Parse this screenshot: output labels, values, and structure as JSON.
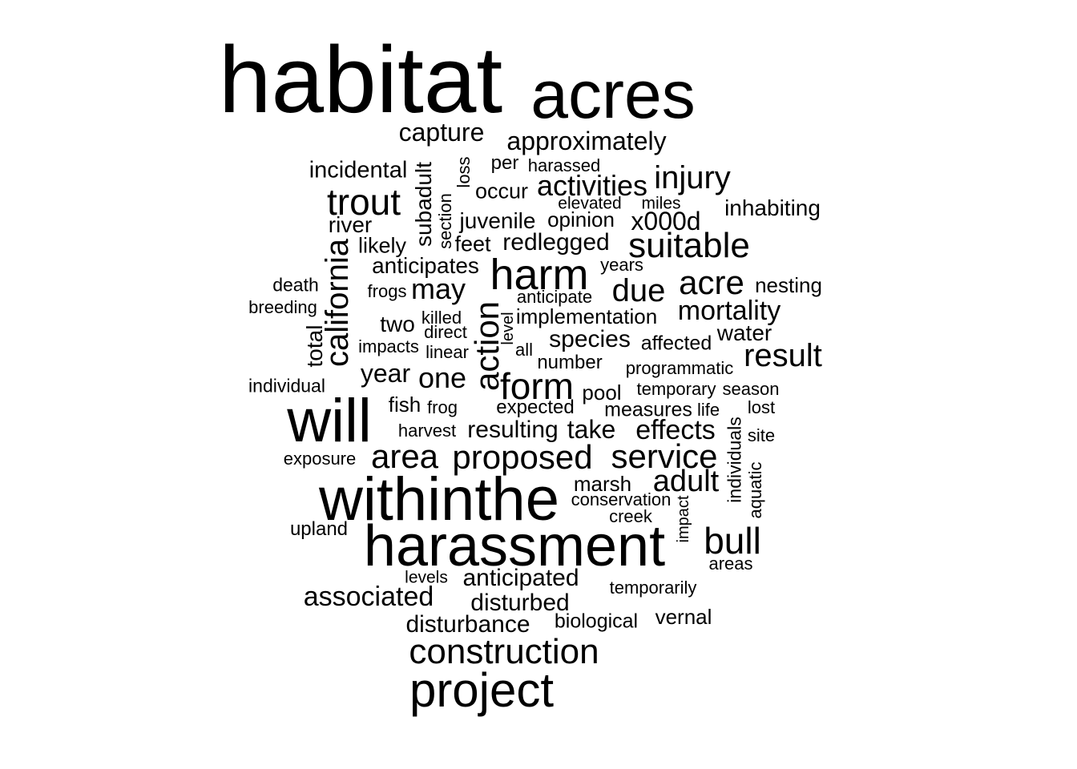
{
  "words": [
    {
      "text": "habitat",
      "size": 10,
      "rotated": false
    },
    {
      "text": "acres",
      "size": 9,
      "rotated": false
    },
    {
      "text": "capture",
      "size": 4,
      "rotated": false
    },
    {
      "text": "approximately",
      "size": 4,
      "rotated": false
    },
    {
      "text": "incidental",
      "size": 4,
      "rotated": false
    },
    {
      "text": "loss",
      "size": 3,
      "rotated": true
    },
    {
      "text": "per",
      "size": 3,
      "rotated": false
    },
    {
      "text": "harassed",
      "size": 3,
      "rotated": false
    },
    {
      "text": "injury",
      "size": 5,
      "rotated": false
    },
    {
      "text": "subadult",
      "size": 4,
      "rotated": true
    },
    {
      "text": "occur",
      "size": 4,
      "rotated": false
    },
    {
      "text": "activities",
      "size": 5,
      "rotated": false
    },
    {
      "text": "trout",
      "size": 6,
      "rotated": false
    },
    {
      "text": "elevated",
      "size": 3,
      "rotated": false
    },
    {
      "text": "miles",
      "size": 3,
      "rotated": false
    },
    {
      "text": "inhabiting",
      "size": 4,
      "rotated": false
    },
    {
      "text": "section",
      "size": 3,
      "rotated": true
    },
    {
      "text": "juvenile",
      "size": 4,
      "rotated": false
    },
    {
      "text": "opinion",
      "size": 4,
      "rotated": false
    },
    {
      "text": "x000d",
      "size": 5,
      "rotated": false
    },
    {
      "text": "river",
      "size": 4,
      "rotated": false
    },
    {
      "text": "feet",
      "size": 4,
      "rotated": false
    },
    {
      "text": "redlegged",
      "size": 4,
      "rotated": false
    },
    {
      "text": "suitable",
      "size": 6,
      "rotated": false
    },
    {
      "text": "likely",
      "size": 4,
      "rotated": false
    },
    {
      "text": "california",
      "size": 5,
      "rotated": true
    },
    {
      "text": "anticipates",
      "size": 4,
      "rotated": false
    },
    {
      "text": "harm",
      "size": 7,
      "rotated": false
    },
    {
      "text": "years",
      "size": 3,
      "rotated": false
    },
    {
      "text": "death",
      "size": 3,
      "rotated": false
    },
    {
      "text": "frogs",
      "size": 3,
      "rotated": false
    },
    {
      "text": "may",
      "size": 5,
      "rotated": false
    },
    {
      "text": "due",
      "size": 5,
      "rotated": false
    },
    {
      "text": "acre",
      "size": 6,
      "rotated": false
    },
    {
      "text": "nesting",
      "size": 4,
      "rotated": false
    },
    {
      "text": "anticipate",
      "size": 3,
      "rotated": false
    },
    {
      "text": "breeding",
      "size": 3,
      "rotated": false
    },
    {
      "text": "action",
      "size": 6,
      "rotated": true
    },
    {
      "text": "mortality",
      "size": 5,
      "rotated": false
    },
    {
      "text": "killed",
      "size": 3,
      "rotated": false
    },
    {
      "text": "implementation",
      "size": 4,
      "rotated": false
    },
    {
      "text": "two",
      "size": 4,
      "rotated": false
    },
    {
      "text": "level",
      "size": 3,
      "rotated": true
    },
    {
      "text": "direct",
      "size": 3,
      "rotated": false
    },
    {
      "text": "water",
      "size": 4,
      "rotated": false
    },
    {
      "text": "total",
      "size": 4,
      "rotated": true
    },
    {
      "text": "species",
      "size": 4,
      "rotated": false
    },
    {
      "text": "affected",
      "size": 4,
      "rotated": false
    },
    {
      "text": "impacts",
      "size": 3,
      "rotated": false
    },
    {
      "text": "all",
      "size": 3,
      "rotated": false
    },
    {
      "text": "linear",
      "size": 3,
      "rotated": false
    },
    {
      "text": "result",
      "size": 5,
      "rotated": false
    },
    {
      "text": "number",
      "size": 3,
      "rotated": false
    },
    {
      "text": "year",
      "size": 4,
      "rotated": false
    },
    {
      "text": "programmatic",
      "size": 3,
      "rotated": false
    },
    {
      "text": "one",
      "size": 5,
      "rotated": false
    },
    {
      "text": "form",
      "size": 6,
      "rotated": false
    },
    {
      "text": "individual",
      "size": 3,
      "rotated": false
    },
    {
      "text": "pool",
      "size": 4,
      "rotated": false
    },
    {
      "text": "temporary",
      "size": 3,
      "rotated": false
    },
    {
      "text": "season",
      "size": 3,
      "rotated": false
    },
    {
      "text": "will",
      "size": 9,
      "rotated": false
    },
    {
      "text": "fish",
      "size": 4,
      "rotated": false
    },
    {
      "text": "frog",
      "size": 3,
      "rotated": false
    },
    {
      "text": "expected",
      "size": 3,
      "rotated": false
    },
    {
      "text": "measures",
      "size": 3,
      "rotated": false
    },
    {
      "text": "life",
      "size": 3,
      "rotated": false
    },
    {
      "text": "lost",
      "size": 3,
      "rotated": false
    },
    {
      "text": "harvest",
      "size": 3,
      "rotated": false
    },
    {
      "text": "resulting",
      "size": 4,
      "rotated": false
    },
    {
      "text": "take",
      "size": 4,
      "rotated": false
    },
    {
      "text": "effects",
      "size": 5,
      "rotated": false
    },
    {
      "text": "individuals",
      "size": 3,
      "rotated": true
    },
    {
      "text": "site",
      "size": 3,
      "rotated": false
    },
    {
      "text": "exposure",
      "size": 3,
      "rotated": false
    },
    {
      "text": "area",
      "size": 5,
      "rotated": false
    },
    {
      "text": "proposed",
      "size": 6,
      "rotated": false
    },
    {
      "text": "service",
      "size": 6,
      "rotated": false
    },
    {
      "text": "aquatic",
      "size": 3,
      "rotated": true
    },
    {
      "text": "withinthe",
      "size": 9,
      "rotated": false
    },
    {
      "text": "marsh",
      "size": 4,
      "rotated": false
    },
    {
      "text": "adult",
      "size": 5,
      "rotated": false
    },
    {
      "text": "conservation",
      "size": 3,
      "rotated": false
    },
    {
      "text": "impact",
      "size": 3,
      "rotated": true
    },
    {
      "text": "creek",
      "size": 3,
      "rotated": false
    },
    {
      "text": "upland",
      "size": 3,
      "rotated": false
    },
    {
      "text": "harassment",
      "size": 9,
      "rotated": false
    },
    {
      "text": "bull",
      "size": 6,
      "rotated": false
    },
    {
      "text": "areas",
      "size": 3,
      "rotated": false
    },
    {
      "text": "levels",
      "size": 3,
      "rotated": false
    },
    {
      "text": "anticipated",
      "size": 4,
      "rotated": false
    },
    {
      "text": "temporarily",
      "size": 3,
      "rotated": false
    },
    {
      "text": "associated",
      "size": 5,
      "rotated": false
    },
    {
      "text": "disturbed",
      "size": 4,
      "rotated": false
    },
    {
      "text": "disturbance",
      "size": 4,
      "rotated": false
    },
    {
      "text": "biological",
      "size": 3,
      "rotated": false
    },
    {
      "text": "vernal",
      "size": 4,
      "rotated": false
    },
    {
      "text": "construction",
      "size": 6,
      "rotated": false
    },
    {
      "text": "project",
      "size": 8,
      "rotated": false
    }
  ],
  "colors": {
    "text": "#000000",
    "background": "#ffffff"
  }
}
